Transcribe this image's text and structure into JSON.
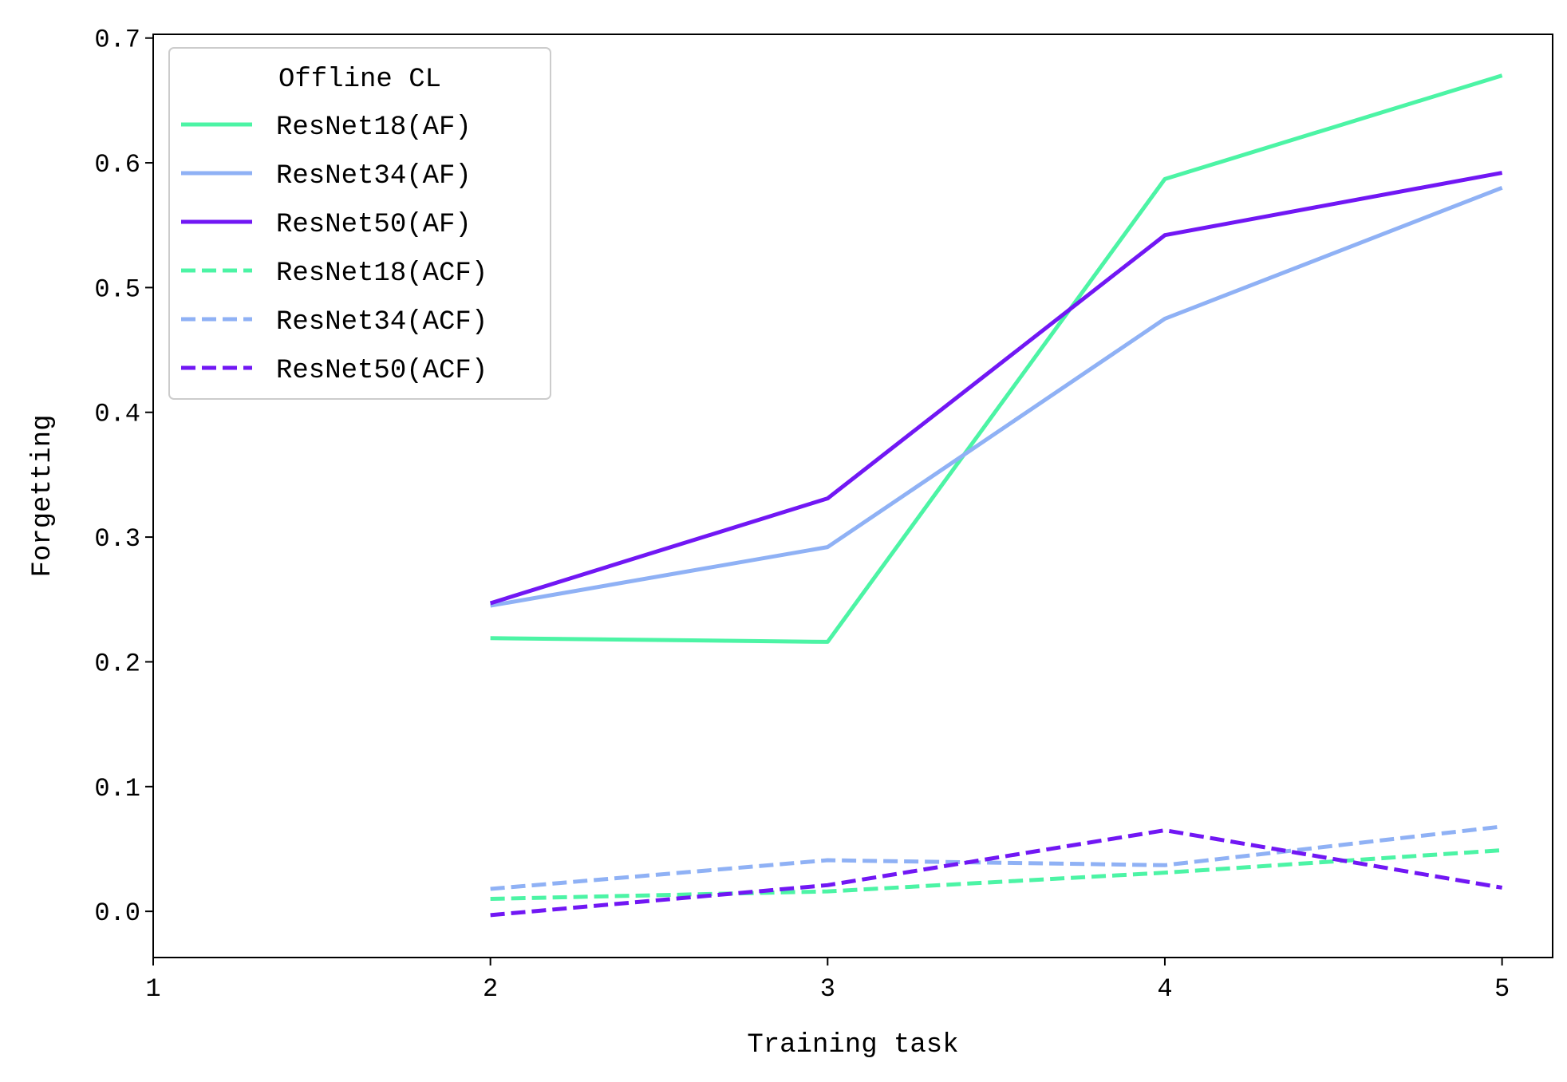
{
  "chart_data": {
    "type": "line",
    "title": "",
    "xlabel": "Training task",
    "ylabel": "Forgetting",
    "x": [
      2,
      3,
      4,
      5
    ],
    "xticks": [
      1,
      2,
      3,
      4,
      5
    ],
    "xtick_labels": [
      "1",
      "2",
      "3",
      "4",
      "5"
    ],
    "yticks": [
      0.0,
      0.1,
      0.2,
      0.3,
      0.4,
      0.5,
      0.6,
      0.7
    ],
    "ytick_labels": [
      "0.0",
      "0.1",
      "0.2",
      "0.3",
      "0.4",
      "0.5",
      "0.6",
      "0.7"
    ],
    "xlim": [
      1,
      5.15
    ],
    "ylim": [
      -0.037,
      0.703
    ],
    "grid": false,
    "legend": {
      "title": "Offline CL",
      "placement": "top-left"
    },
    "series": [
      {
        "name": "ResNet18(AF)",
        "color": "#4cf4a5",
        "style": "solid",
        "values": [
          0.219,
          0.216,
          0.587,
          0.67
        ]
      },
      {
        "name": "ResNet34(AF)",
        "color": "#8fb1f5",
        "style": "solid",
        "values": [
          0.245,
          0.292,
          0.475,
          0.58
        ]
      },
      {
        "name": "ResNet50(AF)",
        "color": "#7117f4",
        "style": "solid",
        "values": [
          0.247,
          0.331,
          0.542,
          0.592
        ]
      },
      {
        "name": "ResNet18(ACF)",
        "color": "#4cf4a5",
        "style": "dashed",
        "values": [
          0.01,
          0.016,
          0.031,
          0.049
        ]
      },
      {
        "name": "ResNet34(ACF)",
        "color": "#8fb1f5",
        "style": "dashed",
        "values": [
          0.018,
          0.041,
          0.037,
          0.068
        ]
      },
      {
        "name": "ResNet50(ACF)",
        "color": "#7117f4",
        "style": "dashed",
        "values": [
          -0.003,
          0.021,
          0.065,
          0.019
        ]
      }
    ]
  }
}
